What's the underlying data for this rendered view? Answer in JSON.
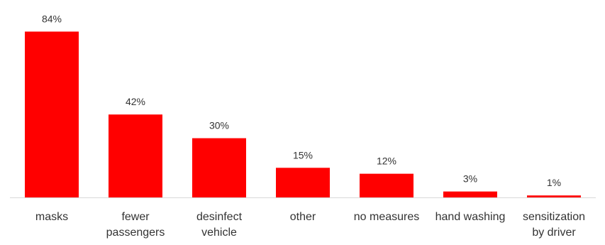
{
  "chart_data": {
    "type": "bar",
    "categories": [
      [
        "masks"
      ],
      [
        "fewer",
        "passengers"
      ],
      [
        "desinfect",
        "vehicle"
      ],
      [
        "other"
      ],
      [
        "no measures"
      ],
      [
        "hand washing"
      ],
      [
        "sensitization",
        "by driver"
      ]
    ],
    "values": [
      84,
      42,
      30,
      15,
      12,
      3,
      1
    ],
    "value_labels": [
      "84%",
      "42%",
      "30%",
      "15%",
      "12%",
      "3%",
      "1%"
    ],
    "ylim": [
      0,
      100
    ],
    "grid": false,
    "colors": {
      "bar": "#ff0000",
      "axis": "#d9d9d9",
      "text": "#333333"
    }
  }
}
